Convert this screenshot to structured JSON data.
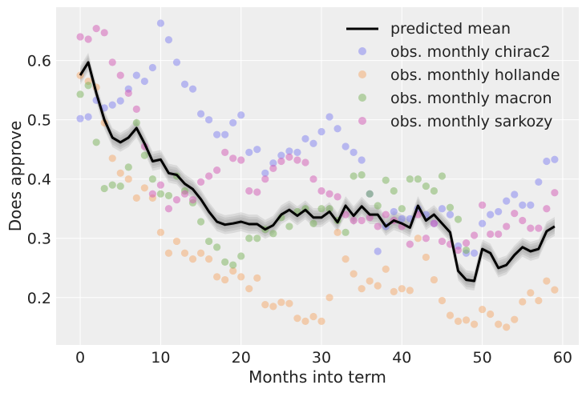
{
  "chart_data": {
    "type": "scatter",
    "title": "",
    "xlabel": "Months into term",
    "ylabel": "Does approve",
    "xlim": [
      -3,
      62
    ],
    "ylim": [
      0.12,
      0.69
    ],
    "xticks": [
      0,
      10,
      20,
      30,
      40,
      50,
      60
    ],
    "yticks": [
      0.2,
      0.3,
      0.4,
      0.5,
      0.6
    ],
    "grid": true,
    "legend_position": "top-right",
    "colors": {
      "background": "#eeeeee",
      "grid": "#ffffff",
      "mean": "#000000",
      "band": "#7f7f7f",
      "chirac2": "#7f7fef",
      "hollande": "#f4a76a",
      "macron": "#79b25a",
      "sarkozy": "#d258b4"
    },
    "legend": {
      "mean": "predicted mean",
      "chirac2": "obs. monthly chirac2",
      "hollande": "obs. monthly hollande",
      "macron": "obs. monthly macron",
      "sarkozy": "obs. monthly sarkozy"
    },
    "predicted_mean": {
      "x": [
        0,
        1,
        2,
        3,
        4,
        5,
        6,
        7,
        8,
        9,
        10,
        11,
        12,
        13,
        14,
        15,
        16,
        17,
        18,
        19,
        20,
        21,
        22,
        23,
        24,
        25,
        26,
        27,
        28,
        29,
        30,
        31,
        32,
        33,
        34,
        35,
        36,
        37,
        38,
        39,
        40,
        41,
        42,
        43,
        44,
        45,
        46,
        47,
        48,
        49,
        50,
        51,
        52,
        53,
        54,
        55,
        56,
        57,
        58,
        59
      ],
      "y": [
        0.575,
        0.597,
        0.545,
        0.5,
        0.47,
        0.462,
        0.47,
        0.486,
        0.46,
        0.43,
        0.433,
        0.41,
        0.407,
        0.392,
        0.383,
        0.366,
        0.345,
        0.328,
        0.323,
        0.325,
        0.328,
        0.324,
        0.324,
        0.315,
        0.322,
        0.34,
        0.348,
        0.338,
        0.348,
        0.335,
        0.335,
        0.345,
        0.327,
        0.355,
        0.338,
        0.354,
        0.34,
        0.34,
        0.32,
        0.33,
        0.325,
        0.318,
        0.355,
        0.33,
        0.34,
        0.325,
        0.31,
        0.245,
        0.23,
        0.228,
        0.282,
        0.275,
        0.25,
        0.255,
        0.272,
        0.285,
        0.278,
        0.282,
        0.312,
        0.32
      ]
    },
    "observations": {
      "chirac2": {
        "x": [
          0,
          1,
          2,
          3,
          4,
          5,
          6,
          7,
          8,
          9,
          10,
          11,
          12,
          13,
          14,
          15,
          16,
          17,
          18,
          19,
          20,
          21,
          22,
          23,
          24,
          25,
          26,
          27,
          28,
          29,
          30,
          31,
          32,
          33,
          34,
          35,
          36,
          37,
          38,
          39,
          40,
          41,
          42,
          43,
          44,
          45,
          46,
          47,
          48,
          49,
          50,
          51,
          52,
          53,
          54,
          55,
          56,
          57,
          58,
          59
        ],
        "y": [
          0.502,
          0.505,
          0.533,
          0.52,
          0.525,
          0.532,
          0.552,
          0.575,
          0.565,
          0.588,
          0.663,
          0.635,
          0.597,
          0.56,
          0.552,
          0.51,
          0.5,
          0.475,
          0.475,
          0.495,
          0.508,
          0.445,
          0.45,
          0.41,
          0.427,
          0.44,
          0.447,
          0.445,
          0.468,
          0.46,
          0.48,
          0.505,
          0.485,
          0.455,
          0.445,
          0.432,
          0.375,
          0.278,
          0.32,
          0.345,
          0.333,
          0.333,
          0.35,
          0.34,
          0.325,
          0.35,
          0.34,
          0.287,
          0.275,
          0.275,
          0.325,
          0.34,
          0.345,
          0.363,
          0.374,
          0.356,
          0.356,
          0.395,
          0.43,
          0.433
        ]
      },
      "hollande": {
        "x": [
          0,
          1,
          2,
          3,
          4,
          5,
          6,
          7,
          8,
          9,
          10,
          11,
          12,
          13,
          14,
          15,
          16,
          17,
          18,
          19,
          20,
          21,
          22,
          23,
          24,
          25,
          26,
          27,
          28,
          29,
          30,
          31,
          32,
          33,
          34,
          35,
          36,
          37,
          38,
          39,
          40,
          41,
          42,
          43,
          44,
          45,
          46,
          47,
          48,
          49,
          50,
          51,
          52,
          53,
          54,
          55,
          56,
          57,
          58,
          59
        ],
        "y": [
          0.575,
          0.565,
          0.555,
          0.495,
          0.435,
          0.41,
          0.4,
          0.368,
          0.385,
          0.368,
          0.31,
          0.275,
          0.295,
          0.275,
          0.265,
          0.275,
          0.265,
          0.235,
          0.23,
          0.245,
          0.235,
          0.215,
          0.233,
          0.188,
          0.185,
          0.192,
          0.19,
          0.165,
          0.16,
          0.168,
          0.16,
          0.2,
          0.31,
          0.265,
          0.24,
          0.215,
          0.228,
          0.22,
          0.248,
          0.21,
          0.215,
          0.212,
          0.3,
          0.268,
          0.23,
          0.195,
          0.17,
          0.16,
          0.162,
          0.155,
          0.18,
          0.172,
          0.155,
          0.15,
          0.163,
          0.193,
          0.208,
          0.195,
          0.228,
          0.213
        ]
      },
      "macron": {
        "x": [
          0,
          1,
          2,
          3,
          4,
          5,
          6,
          7,
          8,
          9,
          10,
          11,
          12,
          13,
          14,
          15,
          16,
          17,
          18,
          19,
          20,
          21,
          22,
          23,
          24,
          25,
          26,
          27,
          28,
          29,
          30,
          31,
          32,
          33,
          34,
          35,
          36,
          37,
          38,
          39,
          40,
          41,
          42,
          43,
          44,
          45,
          46,
          47,
          48
        ],
        "y": [
          0.543,
          0.558,
          0.462,
          0.384,
          0.39,
          0.388,
          0.42,
          0.495,
          0.44,
          0.4,
          0.375,
          0.372,
          0.405,
          0.38,
          0.36,
          0.328,
          0.295,
          0.285,
          0.26,
          0.255,
          0.27,
          0.3,
          0.3,
          0.315,
          0.308,
          0.335,
          0.32,
          0.345,
          0.35,
          0.325,
          0.35,
          0.35,
          0.33,
          0.31,
          0.405,
          0.407,
          0.375,
          0.355,
          0.398,
          0.38,
          0.35,
          0.4,
          0.4,
          0.388,
          0.38,
          0.405,
          0.352,
          0.332,
          0.28
        ]
      },
      "sarkozy": {
        "x": [
          0,
          1,
          2,
          3,
          4,
          5,
          6,
          7,
          8,
          9,
          10,
          11,
          12,
          13,
          14,
          15,
          16,
          17,
          18,
          19,
          20,
          21,
          22,
          23,
          24,
          25,
          26,
          27,
          28,
          29,
          30,
          31,
          32,
          33,
          34,
          35,
          36,
          37,
          38,
          39,
          40,
          41,
          42,
          43,
          44,
          45,
          46,
          47,
          48,
          49,
          50,
          51,
          52,
          53,
          54,
          55,
          56,
          57,
          58,
          59
        ],
        "y": [
          0.64,
          0.636,
          0.654,
          0.647,
          0.597,
          0.575,
          0.545,
          0.518,
          0.455,
          0.375,
          0.39,
          0.35,
          0.365,
          0.375,
          0.365,
          0.395,
          0.405,
          0.415,
          0.445,
          0.435,
          0.432,
          0.38,
          0.378,
          0.4,
          0.418,
          0.43,
          0.437,
          0.432,
          0.428,
          0.4,
          0.38,
          0.375,
          0.37,
          0.34,
          0.33,
          0.33,
          0.335,
          0.32,
          0.34,
          0.33,
          0.32,
          0.29,
          0.34,
          0.3,
          0.325,
          0.295,
          0.29,
          0.28,
          0.292,
          0.305,
          0.356,
          0.307,
          0.307,
          0.32,
          0.342,
          0.33,
          0.317,
          0.317,
          0.35,
          0.377
        ]
      }
    }
  }
}
